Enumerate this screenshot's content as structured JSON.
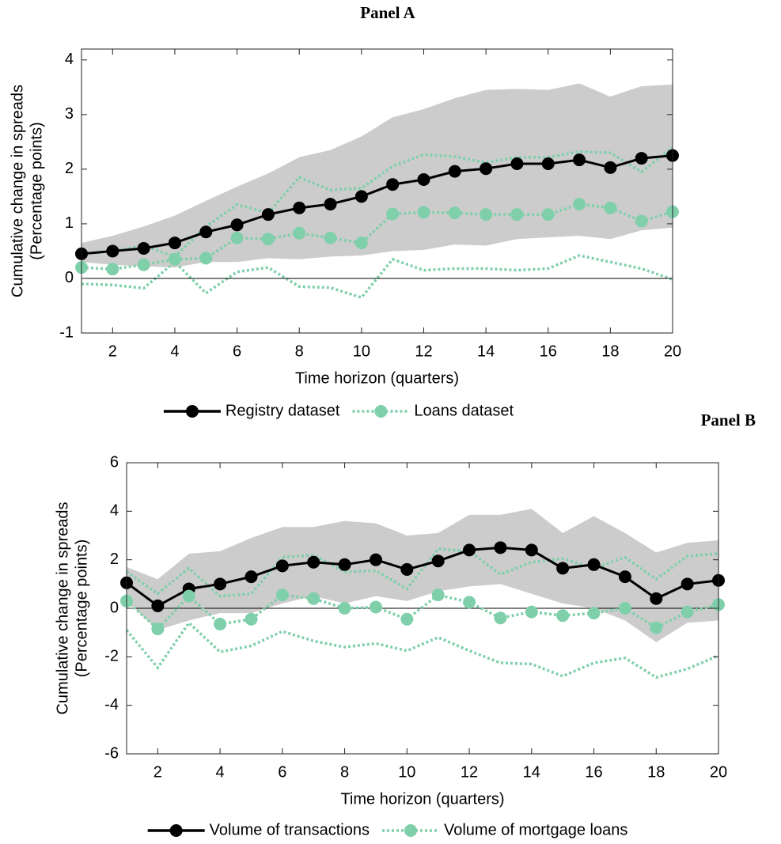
{
  "chart_data": [
    {
      "type": "line",
      "title": "Panel A",
      "xlabel": "Time horizon (quarters)",
      "ylabel": [
        "Cumulative change in spreads",
        "(Percentage points)"
      ],
      "x": [
        1,
        2,
        3,
        4,
        5,
        6,
        7,
        8,
        9,
        10,
        11,
        12,
        13,
        14,
        15,
        16,
        17,
        18,
        19,
        20
      ],
      "xlim": [
        1,
        20
      ],
      "xticks": [
        2,
        4,
        6,
        8,
        10,
        12,
        14,
        16,
        18,
        20
      ],
      "ylim": [
        -1,
        4.2
      ],
      "yticks": [
        -1,
        0,
        1,
        2,
        3,
        4
      ],
      "series": [
        {
          "name": "Registry dataset",
          "color": "#000000",
          "interval": "band",
          "interval_color": "#cccccc",
          "values": [
            0.45,
            0.5,
            0.55,
            0.65,
            0.85,
            0.98,
            1.17,
            1.29,
            1.36,
            1.5,
            1.72,
            1.81,
            1.96,
            2.01,
            2.1,
            2.1,
            2.17,
            2.03,
            2.2,
            2.25
          ],
          "upper": [
            0.65,
            0.78,
            0.95,
            1.15,
            1.42,
            1.68,
            1.92,
            2.22,
            2.35,
            2.6,
            2.95,
            3.1,
            3.3,
            3.45,
            3.47,
            3.45,
            3.57,
            3.33,
            3.52,
            3.55
          ],
          "lower": [
            0.3,
            0.25,
            0.22,
            0.2,
            0.3,
            0.3,
            0.37,
            0.35,
            0.4,
            0.42,
            0.5,
            0.52,
            0.62,
            0.6,
            0.72,
            0.75,
            0.78,
            0.72,
            0.88,
            0.93
          ]
        },
        {
          "name": "Loans dataset",
          "color": "#7fd0aa",
          "interval": "lines",
          "dashed": true,
          "values": [
            0.2,
            0.17,
            0.25,
            0.35,
            0.37,
            0.74,
            0.72,
            0.83,
            0.74,
            0.65,
            1.18,
            1.21,
            1.2,
            1.17,
            1.17,
            1.17,
            1.36,
            1.29,
            1.05,
            1.22
          ],
          "upper": [
            0.45,
            0.5,
            0.6,
            0.4,
            0.95,
            1.35,
            1.2,
            1.85,
            1.62,
            1.65,
            2.05,
            2.27,
            2.23,
            2.12,
            2.22,
            2.22,
            2.32,
            2.3,
            1.95,
            2.4
          ],
          "lower": [
            -0.1,
            -0.12,
            -0.18,
            0.3,
            -0.27,
            0.12,
            0.2,
            -0.15,
            -0.17,
            -0.35,
            0.35,
            0.15,
            0.18,
            0.18,
            0.15,
            0.18,
            0.42,
            0.3,
            0.18,
            -0.02
          ]
        }
      ]
    },
    {
      "type": "line",
      "title": "Panel B",
      "xlabel": "Time horizon (quarters)",
      "ylabel": [
        "Cumulative change in spreads",
        "(Percentage points)"
      ],
      "x": [
        1,
        2,
        3,
        4,
        5,
        6,
        7,
        8,
        9,
        10,
        11,
        12,
        13,
        14,
        15,
        16,
        17,
        18,
        19,
        20
      ],
      "xlim": [
        1,
        20
      ],
      "xticks": [
        2,
        4,
        6,
        8,
        10,
        12,
        14,
        16,
        18,
        20
      ],
      "ylim": [
        -6,
        6
      ],
      "yticks": [
        -6,
        -4,
        -2,
        0,
        2,
        4,
        6
      ],
      "series": [
        {
          "name": "Volume of transactions",
          "color": "#000000",
          "interval": "band",
          "interval_color": "#cccccc",
          "values": [
            1.05,
            0.1,
            0.8,
            1.0,
            1.3,
            1.75,
            1.9,
            1.8,
            2.0,
            1.6,
            1.95,
            2.4,
            2.5,
            2.4,
            1.65,
            1.8,
            1.3,
            0.4,
            1.0,
            1.15
          ],
          "upper": [
            1.7,
            1.2,
            2.25,
            2.35,
            2.9,
            3.35,
            3.35,
            3.6,
            3.5,
            3.0,
            3.1,
            3.85,
            3.85,
            4.1,
            3.1,
            3.8,
            3.1,
            2.3,
            2.7,
            2.8
          ],
          "lower": [
            0.3,
            -0.9,
            -0.5,
            -0.2,
            -0.2,
            0.2,
            0.5,
            0.2,
            0.5,
            0.3,
            0.7,
            0.9,
            1.0,
            0.6,
            0.2,
            0.0,
            -0.5,
            -1.4,
            -0.6,
            -0.5
          ]
        },
        {
          "name": "Volume of mortgage loans",
          "color": "#7fd0aa",
          "interval": "lines",
          "dashed": true,
          "values": [
            0.3,
            -0.85,
            0.5,
            -0.65,
            -0.45,
            0.55,
            0.4,
            0.0,
            0.05,
            -0.45,
            0.55,
            0.25,
            -0.4,
            -0.15,
            -0.3,
            -0.2,
            0.0,
            -0.8,
            -0.15,
            0.15
          ],
          "upper": [
            1.5,
            0.6,
            1.65,
            0.5,
            0.6,
            2.1,
            2.2,
            1.5,
            1.55,
            0.8,
            2.45,
            2.35,
            1.4,
            1.9,
            2.05,
            1.65,
            2.1,
            1.2,
            2.15,
            2.25
          ],
          "lower": [
            -0.9,
            -2.45,
            -0.6,
            -1.8,
            -1.55,
            -0.95,
            -1.35,
            -1.6,
            -1.45,
            -1.75,
            -1.2,
            -1.75,
            -2.25,
            -2.3,
            -2.8,
            -2.25,
            -2.05,
            -2.85,
            -2.5,
            -1.95
          ]
        }
      ]
    }
  ]
}
